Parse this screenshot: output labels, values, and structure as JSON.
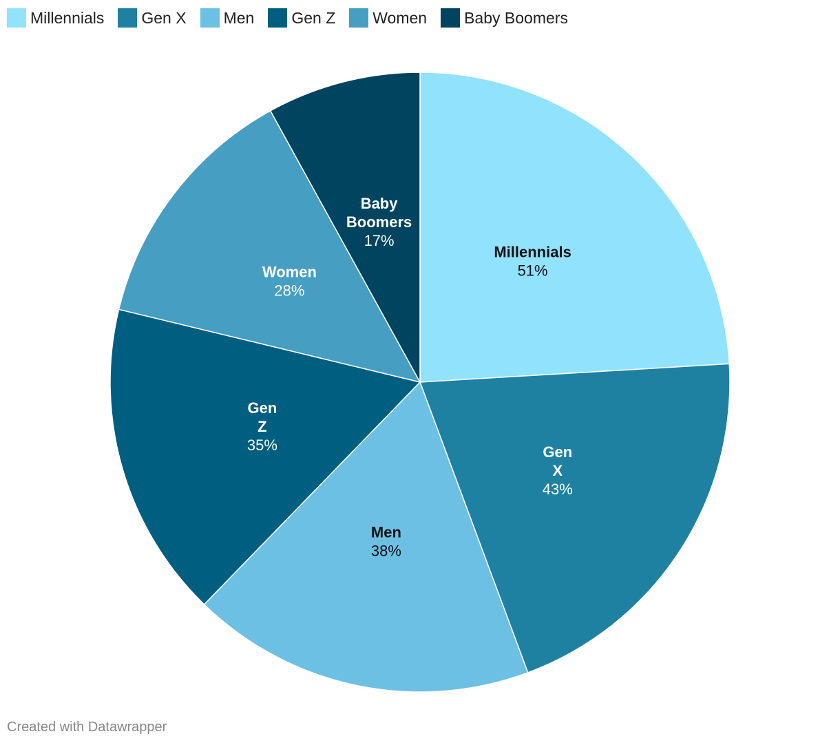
{
  "chart_data": {
    "type": "pie",
    "title": "",
    "legend_position": "top-left",
    "slices": [
      {
        "name": "Millennials",
        "value": 51,
        "label": "51%",
        "color": "#91e2fd",
        "label_color": "#111111"
      },
      {
        "name": "Gen X",
        "value": 43,
        "label": "43%",
        "color": "#1e81a2",
        "label_color": "#ffffff"
      },
      {
        "name": "Men",
        "value": 38,
        "label": "38%",
        "color": "#6cc0e4",
        "label_color": "#111111"
      },
      {
        "name": "Gen Z",
        "value": 35,
        "label": "35%",
        "color": "#005f80",
        "label_color": "#ffffff"
      },
      {
        "name": "Women",
        "value": 28,
        "label": "28%",
        "color": "#469fc3",
        "label_color": "#ffffff"
      },
      {
        "name": "Baby Boomers",
        "value": 17,
        "label": "17%",
        "color": "#00445f",
        "label_color": "#ffffff"
      }
    ]
  },
  "footer": {
    "credit": "Created with Datawrapper"
  }
}
